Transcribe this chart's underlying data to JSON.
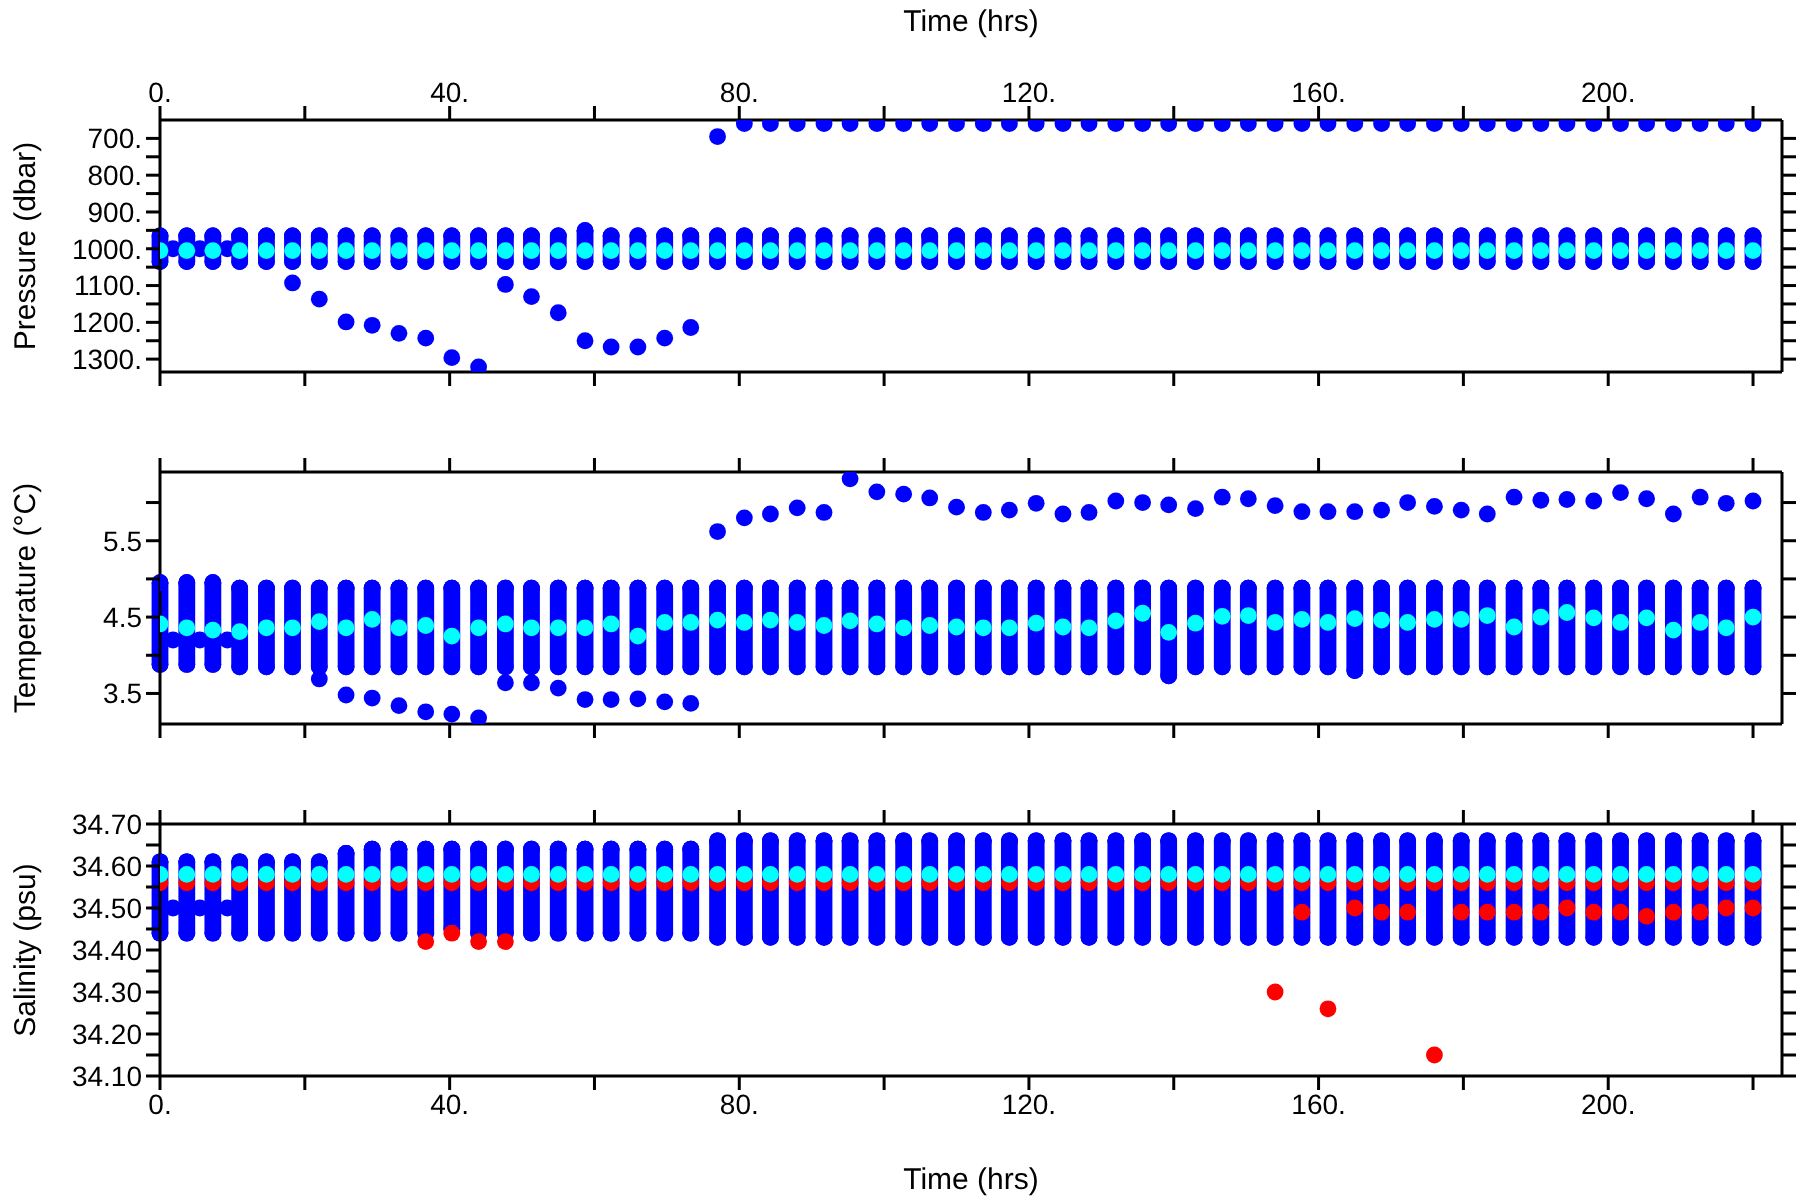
{
  "chart_data": [
    {
      "type": "scatter",
      "ylabel": "Pressure (dbar)",
      "xlabel": "Time (hrs)",
      "marker": "circle",
      "xlim": [
        0,
        224
      ],
      "xticks": [
        {
          "value": 0,
          "label": "0."
        },
        {
          "value": 20,
          "label": null
        },
        {
          "value": 40,
          "label": "40."
        },
        {
          "value": 60,
          "label": null
        },
        {
          "value": 80,
          "label": "80."
        },
        {
          "value": 100,
          "label": null
        },
        {
          "value": 120,
          "label": "120."
        },
        {
          "value": 140,
          "label": null
        },
        {
          "value": 160,
          "label": "160."
        },
        {
          "value": 180,
          "label": null
        },
        {
          "value": 200,
          "label": "200."
        },
        {
          "value": 220,
          "label": null
        }
      ],
      "ylim": [
        1335,
        650
      ],
      "yticks": [
        {
          "value": 700,
          "label": "700."
        },
        {
          "value": 750,
          "label": null
        },
        {
          "value": 800,
          "label": "800."
        },
        {
          "value": 850,
          "label": null
        },
        {
          "value": 900,
          "label": "900."
        },
        {
          "value": 950,
          "label": null
        },
        {
          "value": 1000,
          "label": "1000."
        },
        {
          "value": 1050,
          "label": null
        },
        {
          "value": 1100,
          "label": "1100."
        },
        {
          "value": 1150,
          "label": null
        },
        {
          "value": 1200,
          "label": "1200."
        },
        {
          "value": 1250,
          "label": null
        },
        {
          "value": 1300,
          "label": "1300."
        }
      ],
      "series": [
        {
          "type": "scatter",
          "color": "#0000ff",
          "x": [
            0,
            3.7,
            7.3,
            11,
            14.7,
            18.3,
            22,
            25.7,
            29.3,
            33,
            36.7,
            40.3,
            44,
            47.7,
            51.3,
            55,
            58.7,
            62.3,
            66,
            69.7,
            73.3,
            77,
            80.7,
            84.3,
            88,
            91.7,
            95.3,
            99,
            102.7,
            106.3,
            110,
            113.7,
            117.3,
            121,
            124.7,
            128.3,
            132,
            135.7,
            139.3,
            143,
            146.7,
            150.3,
            154,
            157.7,
            161.3,
            165,
            168.7,
            172.3,
            176,
            179.7,
            183.3,
            187,
            190.7,
            194.3,
            198,
            201.7,
            205.3,
            209,
            212.7,
            216.3,
            220
          ],
          "values": [
            965,
            965,
            965,
            965,
            965,
            965,
            965,
            965,
            965,
            965,
            965,
            965,
            965,
            965,
            965,
            965,
            951,
            965,
            965,
            965,
            965,
            965,
            965,
            965,
            965,
            965,
            965,
            965,
            965,
            965,
            965,
            965,
            965,
            965,
            965,
            965,
            965,
            965,
            965,
            965,
            965,
            965,
            965,
            965,
            965,
            965,
            965,
            965,
            965,
            965,
            965,
            965,
            965,
            965,
            965,
            965,
            965,
            965,
            965,
            965,
            965
          ],
          "errors": [
            [
              965,
              1035
            ],
            [
              965,
              1035
            ],
            [
              965,
              1035
            ],
            [
              965,
              1035
            ],
            [
              965,
              1035
            ],
            [
              965,
              1035
            ],
            [
              965,
              1035
            ],
            [
              965,
              1035
            ],
            [
              965,
              1035
            ],
            [
              965,
              1035
            ],
            [
              965,
              1035
            ],
            [
              965,
              1035
            ],
            [
              965,
              1035
            ],
            [
              965,
              1035
            ],
            [
              965,
              1035
            ],
            [
              965,
              1035
            ],
            [
              951,
              1035
            ],
            [
              965,
              1035
            ],
            [
              965,
              1035
            ],
            [
              965,
              1035
            ],
            [
              965,
              1035
            ],
            [
              965,
              1035
            ],
            [
              965,
              1035
            ],
            [
              965,
              1035
            ],
            [
              965,
              1035
            ],
            [
              965,
              1035
            ],
            [
              965,
              1035
            ],
            [
              965,
              1035
            ],
            [
              965,
              1035
            ],
            [
              965,
              1035
            ],
            [
              965,
              1035
            ],
            [
              965,
              1035
            ],
            [
              965,
              1035
            ],
            [
              965,
              1035
            ],
            [
              965,
              1035
            ],
            [
              965,
              1035
            ],
            [
              965,
              1035
            ],
            [
              965,
              1035
            ],
            [
              965,
              1035
            ],
            [
              965,
              1035
            ],
            [
              965,
              1035
            ],
            [
              965,
              1035
            ],
            [
              965,
              1035
            ],
            [
              965,
              1035
            ],
            [
              965,
              1035
            ],
            [
              965,
              1035
            ],
            [
              965,
              1035
            ],
            [
              965,
              1035
            ],
            [
              965,
              1035
            ],
            [
              965,
              1035
            ],
            [
              965,
              1035
            ],
            [
              965,
              1035
            ],
            [
              965,
              1035
            ],
            [
              965,
              1035
            ],
            [
              965,
              1035
            ],
            [
              965,
              1035
            ],
            [
              965,
              1035
            ],
            [
              965,
              1035
            ],
            [
              965,
              1035
            ],
            [
              965,
              1035
            ],
            [
              965,
              1035
            ]
          ]
        },
        {
          "type": "scatter",
          "color": "#0000ff",
          "x": [
            18.3,
            22,
            25.7,
            29.3,
            33,
            36.7,
            40.3,
            44,
            47.7,
            51.3,
            55,
            58.7,
            62.3,
            66,
            69.7,
            73.3,
            77,
            80.7,
            84.3,
            88,
            91.7,
            95.3,
            99,
            102.7,
            106.3,
            110,
            113.7,
            117.3,
            121,
            124.7,
            128.3,
            132,
            135.7,
            139.3,
            143,
            146.7,
            150.3,
            154,
            157.7,
            161.3,
            165,
            168.7,
            172.3,
            176,
            179.7,
            183.3,
            187,
            190.7,
            194.3,
            198,
            201.7,
            205.3,
            209,
            212.7,
            216.3,
            220
          ],
          "values": [
            1093,
            1137,
            1199,
            1208,
            1230,
            1243,
            1296,
            1321,
            1097,
            1130,
            1174,
            1250,
            1267,
            1267,
            1243,
            1214,
            695,
            660,
            660,
            660,
            660,
            660,
            660,
            660,
            660,
            660,
            660,
            660,
            660,
            660,
            660,
            660,
            660,
            660,
            660,
            660,
            660,
            660,
            660,
            660,
            660,
            660,
            660,
            660,
            660,
            660,
            660,
            660,
            660,
            660,
            660,
            660,
            660,
            660,
            660,
            660
          ]
        },
        {
          "type": "scatter",
          "color": "#0000ff",
          "x": [
            1.8,
            5.5,
            9.3
          ],
          "values": [
            1000,
            1000,
            1000
          ]
        },
        {
          "type": "scatter",
          "color": "#00ffff",
          "x": [
            0,
            3.7,
            7.3,
            11,
            14.7,
            18.3,
            22,
            25.7,
            29.3,
            33,
            36.7,
            40.3,
            44,
            47.7,
            51.3,
            55,
            58.7,
            62.3,
            66,
            69.7,
            73.3,
            77,
            80.7,
            84.3,
            88,
            91.7,
            95.3,
            99,
            102.7,
            106.3,
            110,
            113.7,
            117.3,
            121,
            124.7,
            128.3,
            132,
            135.7,
            139.3,
            143,
            146.7,
            150.3,
            154,
            157.7,
            161.3,
            165,
            168.7,
            172.3,
            176,
            179.7,
            183.3,
            187,
            190.7,
            194.3,
            198,
            201.7,
            205.3,
            209,
            212.7,
            216.3,
            220
          ],
          "values": [
            1005,
            1005,
            1005,
            1005,
            1005,
            1005,
            1005,
            1005,
            1005,
            1005,
            1005,
            1005,
            1005,
            1005,
            1005,
            1005,
            1005,
            1005,
            1005,
            1005,
            1005,
            1005,
            1005,
            1005,
            1005,
            1005,
            1005,
            1005,
            1005,
            1005,
            1005,
            1005,
            1005,
            1005,
            1005,
            1005,
            1005,
            1005,
            1005,
            1005,
            1005,
            1005,
            1005,
            1005,
            1005,
            1005,
            1005,
            1005,
            1005,
            1005,
            1005,
            1005,
            1005,
            1005,
            1005,
            1005,
            1005,
            1005,
            1005,
            1005,
            1005
          ]
        }
      ]
    },
    {
      "type": "scatter",
      "ylabel": "Temperature (°C)",
      "marker": "circle",
      "tick_labels": "y",
      "xlim": [
        0,
        224
      ],
      "xticks": [
        0,
        20,
        40,
        60,
        80,
        100,
        120,
        140,
        160,
        180,
        200,
        220
      ],
      "ylim": [
        3.1,
        6.4
      ],
      "yticks": [
        3.5,
        {
          "value": 4,
          "label": null
        },
        4.5,
        {
          "value": 5,
          "label": null
        },
        5.5,
        {
          "value": 6,
          "label": null
        }
      ],
      "series": [
        {
          "type": "scatter",
          "color": "#0000ff",
          "x": [
            0,
            3.7,
            7.3,
            11,
            14.7,
            18.3,
            22,
            25.7,
            29.3,
            33,
            36.7,
            40.3,
            44,
            47.7,
            51.3,
            55,
            58.7,
            62.3,
            66,
            69.7,
            73.3,
            77,
            80.7,
            84.3,
            88,
            91.7,
            95.3,
            99,
            102.7,
            106.3,
            110,
            113.7,
            117.3,
            121,
            124.7,
            128.3,
            132,
            135.7,
            139.3,
            143,
            146.7,
            150.3,
            154,
            157.7,
            161.3,
            165,
            168.7,
            172.3,
            176,
            179.7,
            183.3,
            187,
            190.7,
            194.3,
            198,
            201.7,
            205.3,
            209,
            212.7,
            216.3,
            220
          ],
          "values": [
            4.95,
            4.95,
            4.95,
            4.88,
            4.88,
            4.88,
            4.88,
            4.88,
            4.88,
            4.88,
            4.88,
            4.88,
            4.88,
            4.88,
            4.88,
            4.88,
            4.88,
            4.88,
            4.88,
            4.88,
            4.88,
            4.88,
            4.88,
            4.88,
            4.88,
            4.88,
            4.88,
            4.88,
            4.88,
            4.88,
            4.88,
            4.88,
            4.88,
            4.88,
            4.88,
            4.88,
            4.88,
            4.88,
            4.88,
            4.88,
            4.88,
            4.88,
            4.88,
            4.88,
            4.88,
            4.88,
            4.88,
            4.88,
            4.88,
            4.88,
            4.88,
            4.88,
            4.88,
            4.88,
            4.88,
            4.88,
            4.88,
            4.88,
            4.88,
            4.88,
            4.88
          ],
          "errors": [
            [
              3.88,
              4.95
            ],
            [
              3.88,
              4.95
            ],
            [
              3.88,
              4.95
            ],
            [
              3.85,
              4.88
            ],
            [
              3.85,
              4.88
            ],
            [
              3.85,
              4.88
            ],
            [
              3.85,
              4.88
            ],
            [
              3.85,
              4.88
            ],
            [
              3.85,
              4.88
            ],
            [
              3.85,
              4.88
            ],
            [
              3.85,
              4.88
            ],
            [
              3.85,
              4.88
            ],
            [
              3.85,
              4.88
            ],
            [
              3.85,
              4.88
            ],
            [
              3.85,
              4.88
            ],
            [
              3.85,
              4.88
            ],
            [
              3.85,
              4.88
            ],
            [
              3.85,
              4.88
            ],
            [
              3.85,
              4.88
            ],
            [
              3.85,
              4.88
            ],
            [
              3.85,
              4.88
            ],
            [
              3.85,
              4.88
            ],
            [
              3.85,
              4.88
            ],
            [
              3.85,
              4.88
            ],
            [
              3.85,
              4.88
            ],
            [
              3.85,
              4.88
            ],
            [
              3.85,
              4.88
            ],
            [
              3.85,
              4.88
            ],
            [
              3.85,
              4.88
            ],
            [
              3.85,
              4.88
            ],
            [
              3.85,
              4.88
            ],
            [
              3.85,
              4.88
            ],
            [
              3.85,
              4.88
            ],
            [
              3.85,
              4.88
            ],
            [
              3.85,
              4.88
            ],
            [
              3.85,
              4.88
            ],
            [
              3.85,
              4.88
            ],
            [
              3.85,
              4.88
            ],
            [
              3.73,
              4.88
            ],
            [
              3.85,
              4.88
            ],
            [
              3.85,
              4.88
            ],
            [
              3.85,
              4.88
            ],
            [
              3.85,
              4.88
            ],
            [
              3.85,
              4.88
            ],
            [
              3.85,
              4.88
            ],
            [
              3.8,
              4.88
            ],
            [
              3.85,
              4.88
            ],
            [
              3.85,
              4.88
            ],
            [
              3.85,
              4.88
            ],
            [
              3.85,
              4.88
            ],
            [
              3.85,
              4.88
            ],
            [
              3.85,
              4.88
            ],
            [
              3.85,
              4.88
            ],
            [
              3.85,
              4.88
            ],
            [
              3.85,
              4.88
            ],
            [
              3.85,
              4.88
            ],
            [
              3.85,
              4.88
            ],
            [
              3.85,
              4.88
            ],
            [
              3.85,
              4.88
            ],
            [
              3.85,
              4.88
            ],
            [
              3.85,
              4.88
            ]
          ]
        },
        {
          "type": "scatter",
          "color": "#0000ff",
          "x": [
            22,
            25.7,
            29.3,
            33,
            36.7,
            40.3,
            44,
            47.7,
            51.3,
            55,
            58.7,
            62.3,
            66,
            69.7,
            73.3,
            77,
            80.7,
            84.3,
            88,
            91.7,
            95.3,
            99,
            102.7,
            106.3,
            110,
            113.7,
            117.3,
            121,
            124.7,
            128.3,
            132,
            135.7,
            139.3,
            143,
            146.7,
            150.3,
            154,
            157.7,
            161.3,
            165,
            168.7,
            172.3,
            176,
            179.7,
            183.3,
            187,
            190.7,
            194.3,
            198,
            201.7,
            205.3,
            209,
            212.7,
            216.3,
            220
          ],
          "values": [
            3.69,
            3.48,
            3.44,
            3.34,
            3.26,
            3.23,
            3.18,
            3.64,
            3.64,
            3.57,
            3.42,
            3.42,
            3.43,
            3.39,
            3.37,
            5.62,
            5.8,
            5.85,
            5.93,
            5.87,
            6.31,
            6.14,
            6.11,
            6.06,
            5.94,
            5.87,
            5.9,
            5.99,
            5.85,
            5.87,
            6.02,
            6,
            5.97,
            5.92,
            6.07,
            6.05,
            5.96,
            5.88,
            5.88,
            5.88,
            5.9,
            6,
            5.95,
            5.9,
            5.85,
            6.07,
            6.03,
            6.04,
            6.02,
            6.13,
            6.05,
            5.85,
            6.07,
            5.99,
            6.02
          ]
        },
        {
          "type": "scatter",
          "color": "#0000ff",
          "x": [
            1.8,
            5.5,
            9.3
          ],
          "values": [
            4.2,
            4.2,
            4.2
          ]
        },
        {
          "type": "scatter",
          "color": "#00ffff",
          "x": [
            0,
            3.7,
            7.3,
            11,
            14.7,
            18.3,
            22,
            25.7,
            29.3,
            33,
            36.7,
            40.3,
            44,
            47.7,
            51.3,
            55,
            58.7,
            62.3,
            66,
            69.7,
            73.3,
            77,
            80.7,
            84.3,
            88,
            91.7,
            95.3,
            99,
            102.7,
            106.3,
            110,
            113.7,
            117.3,
            121,
            124.7,
            128.3,
            132,
            135.7,
            139.3,
            143,
            146.7,
            150.3,
            154,
            157.7,
            161.3,
            165,
            168.7,
            172.3,
            176,
            179.7,
            183.3,
            187,
            190.7,
            194.3,
            198,
            201.7,
            205.3,
            209,
            212.7,
            216.3,
            220
          ],
          "values": [
            4.41,
            4.36,
            4.33,
            4.31,
            4.36,
            4.36,
            4.44,
            4.36,
            4.47,
            4.36,
            4.39,
            4.25,
            4.36,
            4.41,
            4.36,
            4.36,
            4.36,
            4.41,
            4.25,
            4.43,
            4.43,
            4.46,
            4.43,
            4.46,
            4.43,
            4.39,
            4.45,
            4.41,
            4.36,
            4.39,
            4.37,
            4.36,
            4.36,
            4.42,
            4.37,
            4.36,
            4.45,
            4.55,
            4.3,
            4.42,
            4.51,
            4.52,
            4.43,
            4.47,
            4.43,
            4.48,
            4.46,
            4.43,
            4.47,
            4.47,
            4.52,
            4.37,
            4.5,
            4.56,
            4.49,
            4.43,
            4.49,
            4.33,
            4.43,
            4.36,
            4.5
          ]
        }
      ]
    },
    {
      "type": "scatter",
      "ylabel": "Salinity (psu)",
      "xlabel": "Time (hrs)",
      "marker": "circle",
      "xlim": [
        0,
        224
      ],
      "xticks": [
        {
          "value": 0,
          "label": "0."
        },
        {
          "value": 20,
          "label": null
        },
        {
          "value": 40,
          "label": "40."
        },
        {
          "value": 60,
          "label": null
        },
        {
          "value": 80,
          "label": "80."
        },
        {
          "value": 100,
          "label": null
        },
        {
          "value": 120,
          "label": "120."
        },
        {
          "value": 140,
          "label": null
        },
        {
          "value": 160,
          "label": "160."
        },
        {
          "value": 180,
          "label": null
        },
        {
          "value": 200,
          "label": "200."
        },
        {
          "value": 220,
          "label": null
        }
      ],
      "ylim": [
        34.1,
        34.7
      ],
      "yticks": [
        {
          "value": 34.1,
          "label": "34.10"
        },
        {
          "value": 34.15,
          "label": null
        },
        {
          "value": 34.2,
          "label": "34.20"
        },
        {
          "value": 34.25,
          "label": null
        },
        {
          "value": 34.3,
          "label": "34.30"
        },
        {
          "value": 34.35,
          "label": null
        },
        {
          "value": 34.4,
          "label": "34.40"
        },
        {
          "value": 34.45,
          "label": null
        },
        {
          "value": 34.5,
          "label": "34.50"
        },
        {
          "value": 34.55,
          "label": null
        },
        {
          "value": 34.6,
          "label": "34.60"
        },
        {
          "value": 34.65,
          "label": null
        },
        {
          "value": 34.7,
          "label": "34.70"
        }
      ],
      "series": [
        {
          "type": "scatter",
          "color": "#0000ff",
          "x": [
            0,
            3.7,
            7.3,
            11,
            14.7,
            18.3,
            22,
            25.7,
            29.3,
            33,
            36.7,
            40.3,
            44,
            47.7,
            51.3,
            55,
            58.7,
            62.3,
            66,
            69.7,
            73.3,
            77,
            80.7,
            84.3,
            88,
            91.7,
            95.3,
            99,
            102.7,
            106.3,
            110,
            113.7,
            117.3,
            121,
            124.7,
            128.3,
            132,
            135.7,
            139.3,
            143,
            146.7,
            150.3,
            154,
            157.7,
            161.3,
            165,
            168.7,
            172.3,
            176,
            179.7,
            183.3,
            187,
            190.7,
            194.3,
            198,
            201.7,
            205.3,
            209,
            212.7,
            216.3,
            220
          ],
          "values": [
            34.61,
            34.61,
            34.61,
            34.61,
            34.61,
            34.61,
            34.61,
            34.63,
            34.64,
            34.64,
            34.64,
            34.64,
            34.64,
            34.64,
            34.64,
            34.64,
            34.64,
            34.64,
            34.64,
            34.64,
            34.64,
            34.66,
            34.66,
            34.66,
            34.66,
            34.66,
            34.66,
            34.66,
            34.66,
            34.66,
            34.66,
            34.66,
            34.66,
            34.66,
            34.66,
            34.66,
            34.66,
            34.66,
            34.66,
            34.66,
            34.66,
            34.66,
            34.66,
            34.66,
            34.66,
            34.66,
            34.66,
            34.66,
            34.66,
            34.66,
            34.66,
            34.66,
            34.66,
            34.66,
            34.66,
            34.66,
            34.66,
            34.66,
            34.66,
            34.66,
            34.66
          ],
          "errors": [
            [
              34.44,
              34.61
            ],
            [
              34.44,
              34.61
            ],
            [
              34.44,
              34.61
            ],
            [
              34.44,
              34.61
            ],
            [
              34.44,
              34.61
            ],
            [
              34.44,
              34.61
            ],
            [
              34.44,
              34.61
            ],
            [
              34.44,
              34.63
            ],
            [
              34.44,
              34.64
            ],
            [
              34.44,
              34.64
            ],
            [
              34.44,
              34.64
            ],
            [
              34.45,
              34.64
            ],
            [
              34.44,
              34.64
            ],
            [
              34.44,
              34.64
            ],
            [
              34.44,
              34.64
            ],
            [
              34.44,
              34.64
            ],
            [
              34.44,
              34.64
            ],
            [
              34.44,
              34.64
            ],
            [
              34.44,
              34.64
            ],
            [
              34.44,
              34.64
            ],
            [
              34.44,
              34.64
            ],
            [
              34.43,
              34.66
            ],
            [
              34.43,
              34.66
            ],
            [
              34.43,
              34.66
            ],
            [
              34.43,
              34.66
            ],
            [
              34.43,
              34.66
            ],
            [
              34.43,
              34.66
            ],
            [
              34.43,
              34.66
            ],
            [
              34.43,
              34.66
            ],
            [
              34.43,
              34.66
            ],
            [
              34.43,
              34.66
            ],
            [
              34.43,
              34.66
            ],
            [
              34.43,
              34.66
            ],
            [
              34.43,
              34.66
            ],
            [
              34.43,
              34.66
            ],
            [
              34.43,
              34.66
            ],
            [
              34.43,
              34.66
            ],
            [
              34.43,
              34.66
            ],
            [
              34.43,
              34.66
            ],
            [
              34.43,
              34.66
            ],
            [
              34.43,
              34.66
            ],
            [
              34.43,
              34.66
            ],
            [
              34.43,
              34.66
            ],
            [
              34.43,
              34.66
            ],
            [
              34.43,
              34.66
            ],
            [
              34.43,
              34.66
            ],
            [
              34.43,
              34.66
            ],
            [
              34.43,
              34.66
            ],
            [
              34.43,
              34.66
            ],
            [
              34.43,
              34.66
            ],
            [
              34.43,
              34.66
            ],
            [
              34.43,
              34.66
            ],
            [
              34.43,
              34.66
            ],
            [
              34.43,
              34.66
            ],
            [
              34.43,
              34.66
            ],
            [
              34.43,
              34.66
            ],
            [
              34.43,
              34.66
            ],
            [
              34.43,
              34.66
            ],
            [
              34.43,
              34.66
            ],
            [
              34.43,
              34.66
            ],
            [
              34.43,
              34.66
            ]
          ]
        },
        {
          "type": "scatter",
          "color": "#0000ff",
          "x": [
            1.8,
            5.5,
            9.3
          ],
          "values": [
            34.5,
            34.5,
            34.5
          ]
        },
        {
          "type": "scatter",
          "color": "#ff0000",
          "x": [
            0,
            3.7,
            7.3,
            11,
            14.7,
            18.3,
            22,
            25.7,
            29.3,
            33,
            36.7,
            40.3,
            44,
            47.7,
            51.3,
            55,
            58.7,
            62.3,
            66,
            69.7,
            73.3,
            77,
            80.7,
            84.3,
            88,
            91.7,
            95.3,
            99,
            102.7,
            106.3,
            110,
            113.7,
            117.3,
            121,
            124.7,
            128.3,
            132,
            135.7,
            139.3,
            143,
            146.7,
            150.3,
            154,
            157.7,
            161.3,
            165,
            168.7,
            172.3,
            176,
            179.7,
            183.3,
            187,
            190.7,
            194.3,
            198,
            201.7,
            205.3,
            209,
            212.7,
            216.3,
            220
          ],
          "values": [
            34.56,
            34.56,
            34.56,
            34.56,
            34.56,
            34.56,
            34.56,
            34.56,
            34.56,
            34.56,
            34.56,
            34.56,
            34.56,
            34.56,
            34.56,
            34.56,
            34.56,
            34.56,
            34.56,
            34.56,
            34.56,
            34.56,
            34.56,
            34.56,
            34.56,
            34.56,
            34.56,
            34.56,
            34.56,
            34.56,
            34.56,
            34.56,
            34.56,
            34.56,
            34.56,
            34.56,
            34.56,
            34.56,
            34.56,
            34.56,
            34.56,
            34.56,
            34.56,
            34.56,
            34.56,
            34.56,
            34.56,
            34.56,
            34.56,
            34.56,
            34.56,
            34.56,
            34.56,
            34.56,
            34.56,
            34.56,
            34.56,
            34.56,
            34.56,
            34.56,
            34.56
          ]
        },
        {
          "type": "scatter",
          "color": "#ff0000",
          "x": [
            36.7,
            40.3,
            44,
            47.7,
            154,
            157.7,
            161.3,
            165,
            168.7,
            172.3,
            176,
            179.7,
            183.3,
            187,
            190.7,
            194.3,
            198,
            201.7,
            205.3,
            209,
            212.7,
            216.3,
            220
          ],
          "values": [
            34.42,
            34.44,
            34.42,
            34.42,
            34.3,
            34.49,
            34.26,
            34.5,
            34.49,
            34.49,
            34.15,
            34.49,
            34.49,
            34.49,
            34.49,
            34.5,
            34.49,
            34.49,
            34.48,
            34.49,
            34.49,
            34.5,
            34.5
          ]
        },
        {
          "type": "scatter",
          "color": "#00ffff",
          "x": [
            0,
            3.7,
            7.3,
            11,
            14.7,
            18.3,
            22,
            25.7,
            29.3,
            33,
            36.7,
            40.3,
            44,
            47.7,
            51.3,
            55,
            58.7,
            62.3,
            66,
            69.7,
            73.3,
            77,
            80.7,
            84.3,
            88,
            91.7,
            95.3,
            99,
            102.7,
            106.3,
            110,
            113.7,
            117.3,
            121,
            124.7,
            128.3,
            132,
            135.7,
            139.3,
            143,
            146.7,
            150.3,
            154,
            157.7,
            161.3,
            165,
            168.7,
            172.3,
            176,
            179.7,
            183.3,
            187,
            190.7,
            194.3,
            198,
            201.7,
            205.3,
            209,
            212.7,
            216.3,
            220
          ],
          "values": [
            34.58,
            34.58,
            34.58,
            34.58,
            34.58,
            34.58,
            34.58,
            34.58,
            34.58,
            34.58,
            34.58,
            34.58,
            34.58,
            34.58,
            34.58,
            34.58,
            34.58,
            34.58,
            34.58,
            34.58,
            34.58,
            34.58,
            34.58,
            34.58,
            34.58,
            34.58,
            34.58,
            34.58,
            34.58,
            34.58,
            34.58,
            34.58,
            34.58,
            34.58,
            34.58,
            34.58,
            34.58,
            34.58,
            34.58,
            34.58,
            34.58,
            34.58,
            34.58,
            34.58,
            34.58,
            34.58,
            34.58,
            34.58,
            34.58,
            34.58,
            34.58,
            34.58,
            34.58,
            34.58,
            34.58,
            34.58,
            34.58,
            34.58,
            34.58,
            34.58,
            34.58
          ]
        }
      ]
    }
  ]
}
